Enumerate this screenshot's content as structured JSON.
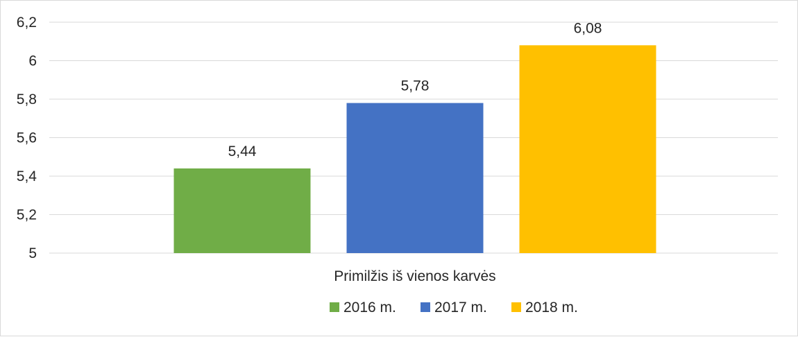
{
  "chart_data": {
    "type": "bar",
    "categories": [
      "Primilžis iš vienos karvės"
    ],
    "series": [
      {
        "name": "2016 m.",
        "values": [
          5.44
        ],
        "label": "5,44",
        "color": "#70ad47"
      },
      {
        "name": "2017 m.",
        "values": [
          5.78
        ],
        "label": "5,78",
        "color": "#4472c4"
      },
      {
        "name": "2018 m.",
        "values": [
          6.08
        ],
        "label": "6,08",
        "color": "#ffc000"
      }
    ],
    "ylim": [
      5,
      6.2
    ],
    "yticks": [
      5,
      5.2,
      5.4,
      5.6,
      5.8,
      6,
      6.2
    ],
    "ytick_labels": [
      "5",
      "5,2",
      "5,4",
      "5,6",
      "5,8",
      "6",
      "6,2"
    ],
    "title": "",
    "xlabel": "",
    "ylabel": "",
    "grid": true,
    "gridline_color": "#d9d9d9",
    "legend_position": "bottom"
  }
}
